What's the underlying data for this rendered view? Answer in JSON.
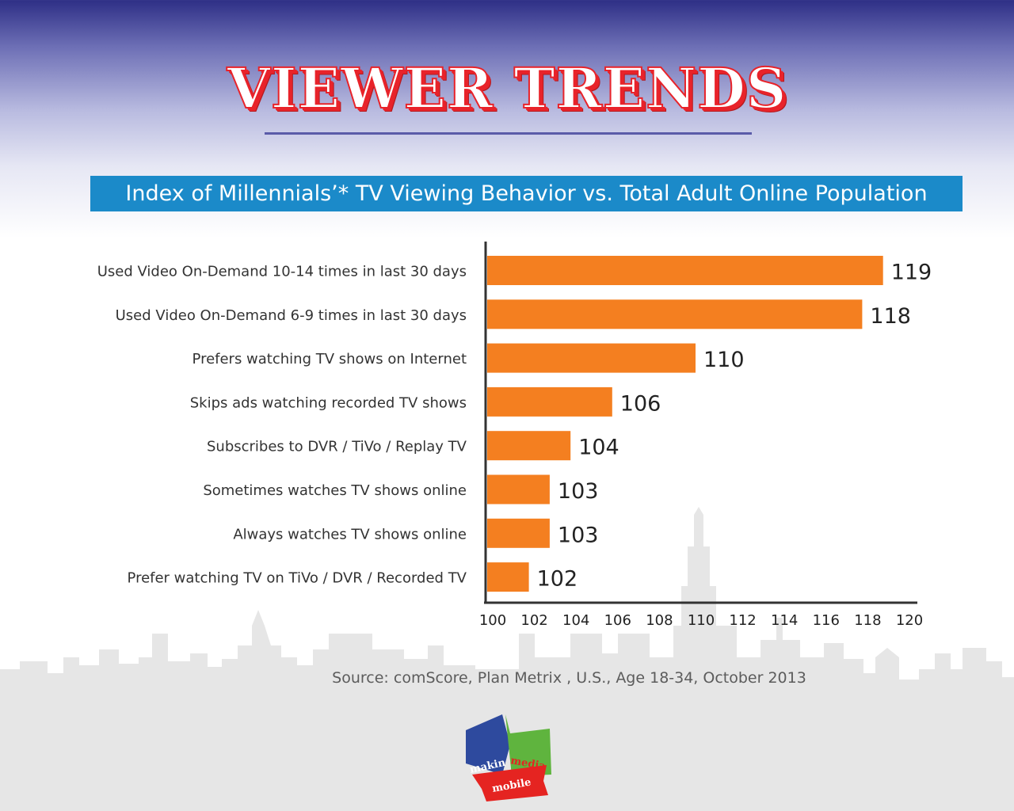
{
  "header": {
    "title": "VIEWER TRENDS",
    "subtitle": "Index of Millennials’* TV Viewing Behavior vs. Total Adult Online Population"
  },
  "chart_data": {
    "type": "bar",
    "orientation": "horizontal",
    "categories": [
      "Used Video On-Demand 10-14 times in last 30 days",
      "Used Video On-Demand 6-9 times in last 30 days",
      "Prefers watching TV shows on Internet",
      "Skips ads watching recorded TV shows",
      "Subscribes to DVR / TiVo / Replay TV",
      "Sometimes watches TV shows online",
      "Always watches TV shows online",
      "Prefer watching TV on TiVo / DVR / Recorded TV"
    ],
    "values": [
      119,
      118,
      110,
      106,
      104,
      103,
      103,
      102
    ],
    "xlim": [
      100,
      120
    ],
    "xticks": [
      100,
      102,
      104,
      106,
      108,
      110,
      112,
      114,
      116,
      118,
      120
    ],
    "bar_color": "#f47f20",
    "grid": false,
    "xlabel": "",
    "ylabel": ""
  },
  "footer": {
    "source": "Source: comScore, Plan Metrix , U.S., Age 18-34, October 2013"
  },
  "logo": {
    "text_left": "makin",
    "text_right": "media",
    "text_bottom": "mobile",
    "colors": {
      "blue": "#2e4a9e",
      "green": "#5fb43e",
      "red": "#e52421"
    }
  }
}
